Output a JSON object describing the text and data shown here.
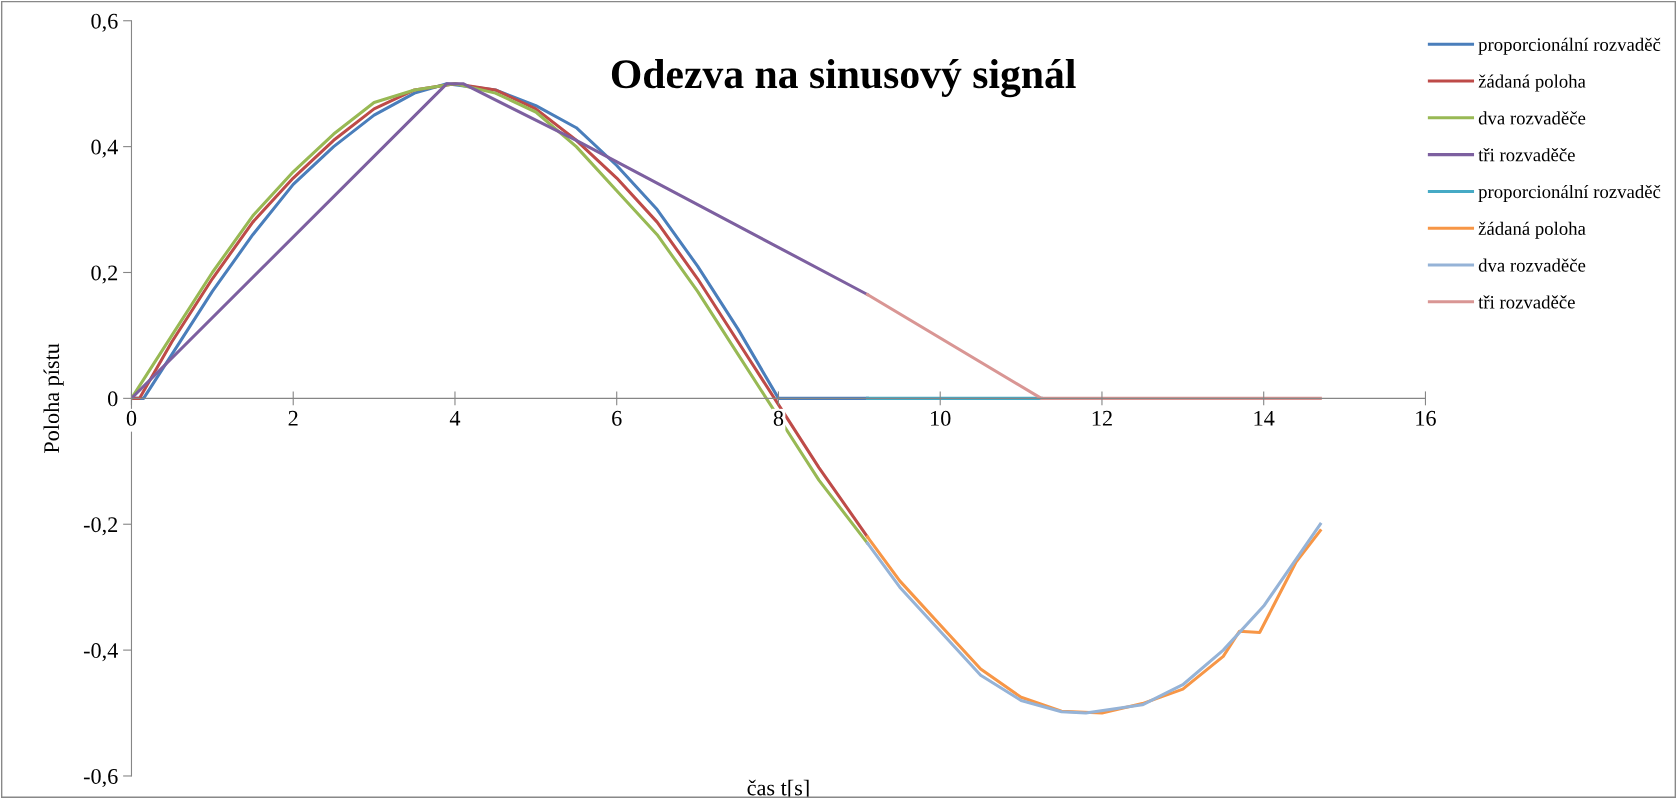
{
  "chart_data": {
    "type": "line",
    "title": "Odezva na sinusový signál",
    "xlabel": "čas t[s]",
    "ylabel": "Poloha pístu",
    "xlim": [
      0,
      16
    ],
    "xticks": [
      0,
      2,
      4,
      6,
      8,
      10,
      12,
      14,
      16
    ],
    "ylim": [
      -0.6,
      0.6
    ],
    "yticks": [
      {
        "value": -0.6,
        "label": "-0,6"
      },
      {
        "value": -0.4,
        "label": "-0,4"
      },
      {
        "value": -0.2,
        "label": "-0,2"
      },
      0,
      {
        "value": 0.2,
        "label": "0,2"
      },
      {
        "value": 0.4,
        "label": "0,4"
      },
      {
        "value": 0.6,
        "label": "0,6"
      }
    ],
    "grid": false,
    "legend": "right",
    "marker": "none",
    "line_style": "solid",
    "series": [
      {
        "name": "proporcionální rozvaděč",
        "color": "#4a7ebb",
        "x": [
          0,
          0.15,
          0.5,
          1,
          1.5,
          2,
          2.5,
          3,
          3.5,
          3.9,
          4.5,
          5,
          5.5,
          6,
          6.5,
          7,
          7.5,
          8,
          9.1
        ],
        "values": [
          0,
          0,
          0.07,
          0.17,
          0.26,
          0.34,
          0.4,
          0.45,
          0.485,
          0.5,
          0.49,
          0.465,
          0.43,
          0.37,
          0.3,
          0.21,
          0.11,
          0,
          0
        ]
      },
      {
        "name": "žádaná poloha",
        "color": "#be4b48",
        "x": [
          0,
          0.1,
          0.5,
          1,
          1.5,
          2,
          2.5,
          3,
          3.5,
          4,
          4.5,
          5,
          5.5,
          6,
          6.5,
          7,
          7.5,
          8,
          8.5,
          9.1
        ],
        "values": [
          0,
          0,
          0.09,
          0.19,
          0.28,
          0.35,
          0.41,
          0.46,
          0.49,
          0.5,
          0.49,
          0.46,
          0.41,
          0.35,
          0.28,
          0.19,
          0.09,
          -0.01,
          -0.11,
          -0.22
        ]
      },
      {
        "name": "dva rozvaděče",
        "color": "#98b954",
        "x": [
          0,
          0.5,
          1,
          1.5,
          2,
          2.5,
          3,
          3.5,
          4,
          4.5,
          5,
          5.5,
          6,
          6.5,
          7,
          7.5,
          8,
          8.5,
          9.1
        ],
        "values": [
          0,
          0.1,
          0.2,
          0.29,
          0.36,
          0.42,
          0.47,
          0.49,
          0.5,
          0.485,
          0.455,
          0.4,
          0.33,
          0.26,
          0.17,
          0.07,
          -0.03,
          -0.13,
          -0.23
        ]
      },
      {
        "name": "tři rozvaděče",
        "color": "#7d60a0",
        "x": [
          0,
          3.9,
          4.1,
          5.5,
          9.1
        ],
        "values": [
          0,
          0.5,
          0.5,
          0.41,
          0.165
        ]
      },
      {
        "name": "proporcionální rozvaděč",
        "color": "#46aac5",
        "x": [
          9.1,
          11.25
        ],
        "values": [
          0,
          0
        ]
      },
      {
        "name": "žádaná poloha",
        "color": "#f79646",
        "x": [
          9.1,
          9.5,
          10,
          10.5,
          11,
          11.5,
          12,
          12.5,
          13,
          13.5,
          13.7,
          13.95,
          14.4,
          14.7
        ],
        "values": [
          -0.22,
          -0.29,
          -0.36,
          -0.43,
          -0.475,
          -0.497,
          -0.5,
          -0.485,
          -0.462,
          -0.41,
          -0.37,
          -0.372,
          -0.26,
          -0.21
        ]
      },
      {
        "name": "dva rozvaděče",
        "color": "#95b3d7",
        "x": [
          9.1,
          9.5,
          10,
          10.5,
          11,
          11.5,
          11.8,
          12.5,
          13,
          13.5,
          14,
          14.7
        ],
        "values": [
          -0.23,
          -0.3,
          -0.37,
          -0.44,
          -0.48,
          -0.498,
          -0.5,
          -0.487,
          -0.455,
          -0.4,
          -0.33,
          -0.2
        ]
      },
      {
        "name": "tři rozvaděče",
        "color": "#d99694",
        "x": [
          9.1,
          11.25,
          14.7
        ],
        "values": [
          0.165,
          0,
          0
        ]
      }
    ]
  }
}
